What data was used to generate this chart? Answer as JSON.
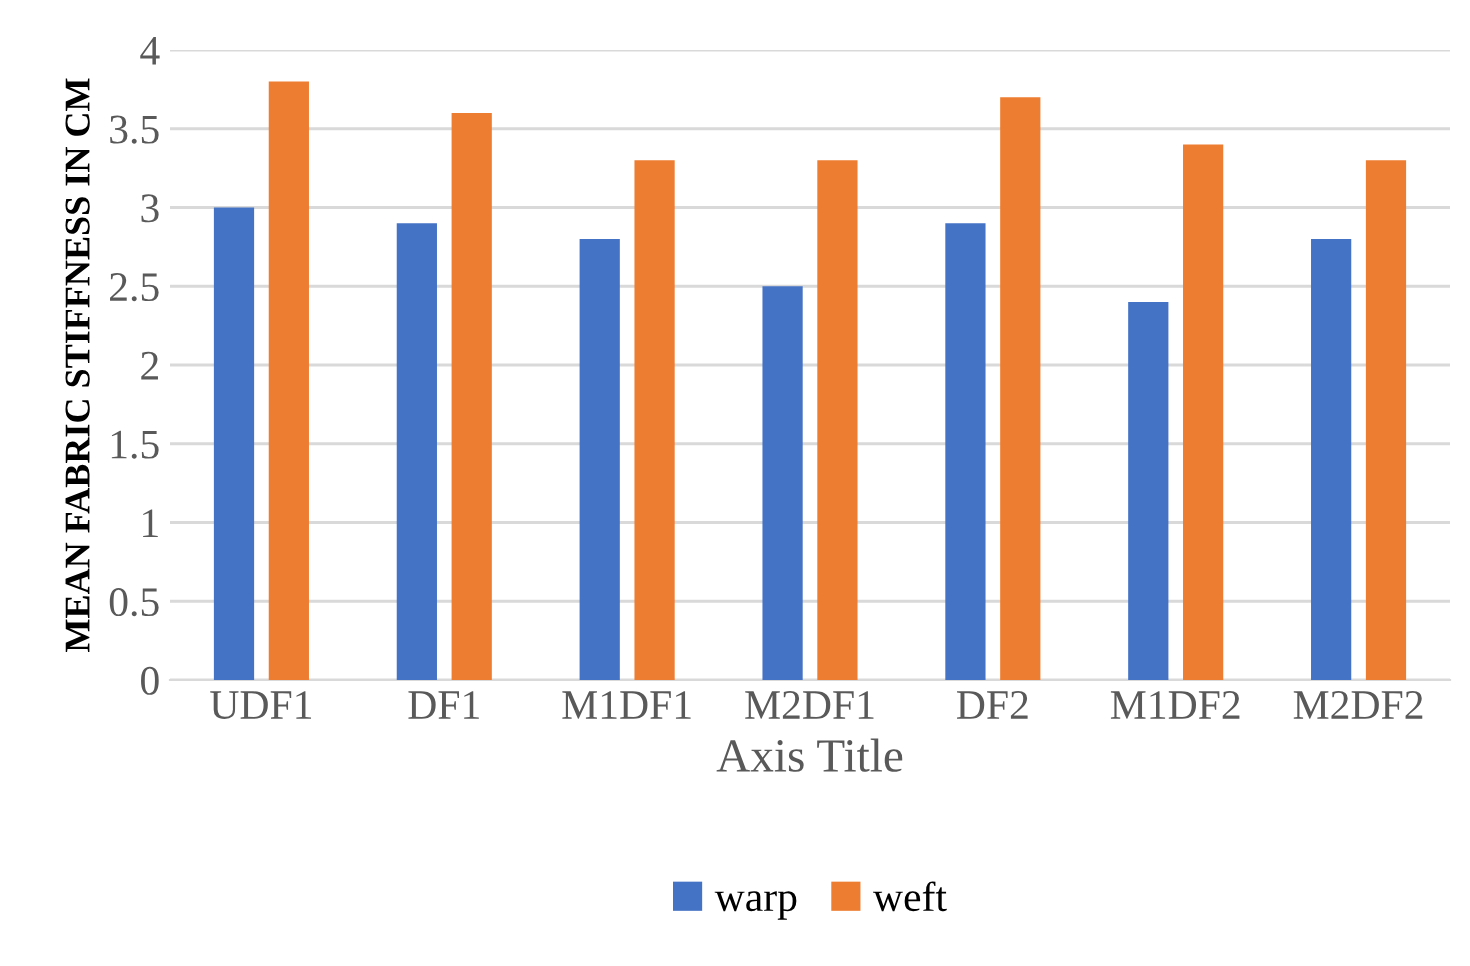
{
  "chart_data": {
    "type": "bar",
    "xlabel": "Axis Title",
    "ylabel": "MEAN FABRIC STIFFNESS IN CM",
    "categories": [
      "UDF1",
      "DF1",
      "M1DF1",
      "M2DF1",
      "DF2",
      "M1DF2",
      "M2DF2"
    ],
    "series": [
      {
        "name": "warp",
        "color": "#4472c4",
        "values": [
          3.0,
          2.9,
          2.8,
          2.5,
          2.9,
          2.4,
          2.8
        ]
      },
      {
        "name": "weft",
        "color": "#ed7d31",
        "values": [
          3.8,
          3.6,
          3.3,
          3.3,
          3.7,
          3.4,
          3.3
        ]
      }
    ],
    "ylim": [
      0,
      4
    ],
    "yticks": [
      0,
      0.5,
      1,
      1.5,
      2,
      2.5,
      3,
      3.5,
      4
    ],
    "grid": "y",
    "legend": "bottom"
  }
}
